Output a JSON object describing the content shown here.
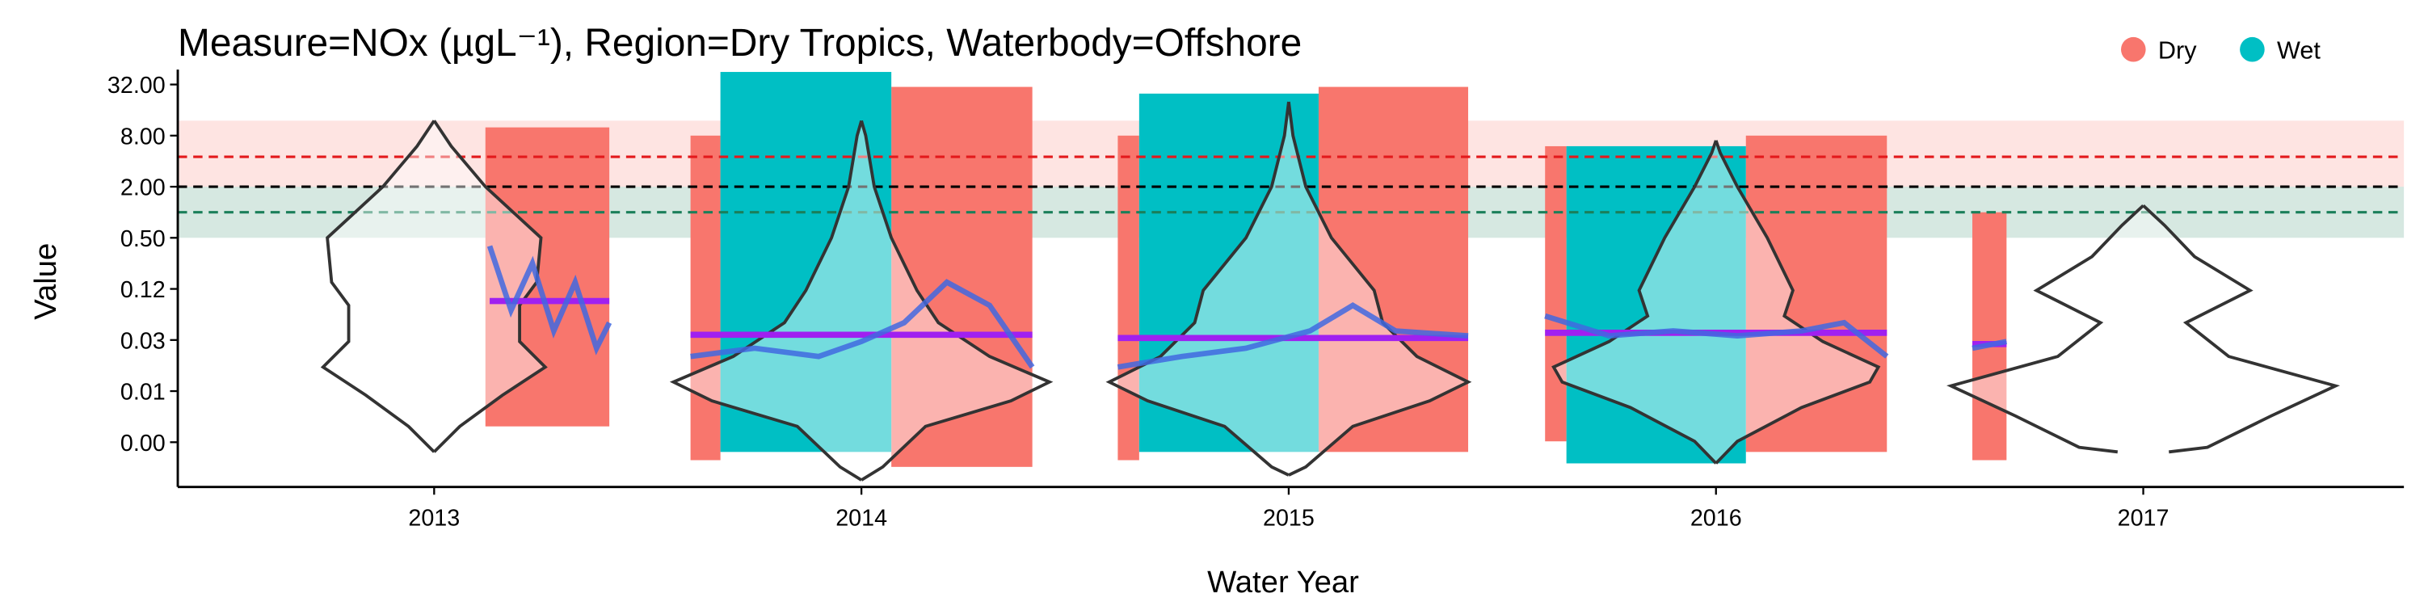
{
  "chart_data": {
    "type": "violin-scatter",
    "title": "Measure=NOx (µgL⁻¹), Region=Dry Tropics, Waterbody=Offshore",
    "x_label": "Water Year",
    "y_label": "Value",
    "xlim": [
      2012.4,
      2017.61
    ],
    "xticks": [
      2013,
      2014,
      2015,
      2016,
      2017
    ],
    "ylim": [
      0.00058,
      48
    ],
    "log_y": true,
    "yticks": [
      {
        "value": 0.001953,
        "label": "0.00"
      },
      {
        "value": 0.0078125,
        "label": "0.01"
      },
      {
        "value": 0.03125,
        "label": "0.03"
      },
      {
        "value": 0.125,
        "label": "0.12"
      },
      {
        "value": 0.5,
        "label": "0.50"
      },
      {
        "value": 2,
        "label": "2.00"
      },
      {
        "value": 8,
        "label": "8.00"
      },
      {
        "value": 32,
        "label": "32.00"
      }
    ],
    "legend": "top-right",
    "series": [
      {
        "name": "Dry",
        "color": "#F8766D",
        "segments": [
          {
            "x": [
              2013.12,
              2013.41
            ],
            "y": [
              0.003,
              10
            ]
          },
          {
            "x": [
              2013.6,
              2013.67
            ],
            "y": [
              0.0012,
              8
            ]
          },
          {
            "x": [
              2014.07,
              2014.4
            ],
            "y": [
              0.001,
              30
            ]
          },
          {
            "x": [
              2014.6,
              2014.65
            ],
            "y": [
              0.0012,
              8
            ]
          },
          {
            "x": [
              2015.07,
              2015.42
            ],
            "y": [
              0.0015,
              30
            ]
          },
          {
            "x": [
              2015.6,
              2015.65
            ],
            "y": [
              0.002,
              6
            ]
          },
          {
            "x": [
              2016.07,
              2016.4
            ],
            "y": [
              0.0015,
              8
            ]
          },
          {
            "x": [
              2016.6,
              2016.68
            ],
            "y": [
              0.0012,
              1
            ]
          }
        ]
      },
      {
        "name": "Wet",
        "color": "#00BFC4",
        "segments": [
          {
            "x": [
              2013.67,
              2014.07
            ],
            "y": [
              0.0015,
              45
            ]
          },
          {
            "x": [
              2014.65,
              2015.07
            ],
            "y": [
              0.0015,
              25
            ]
          },
          {
            "x": [
              2015.65,
              2016.07
            ],
            "y": [
              0.0011,
              6
            ]
          }
        ]
      }
    ],
    "violins": [
      {
        "x": 2013,
        "y": [
          0.0015,
          0.003,
          0.007,
          0.015,
          0.03,
          0.08,
          0.15,
          0.5,
          2,
          6,
          12
        ],
        "half_width": [
          0,
          0.06,
          0.16,
          0.26,
          0.2,
          0.2,
          0.24,
          0.25,
          0.12,
          0.04,
          0
        ]
      },
      {
        "x": 2014,
        "y": [
          0.0007,
          0.001,
          0.003,
          0.006,
          0.01,
          0.02,
          0.05,
          0.12,
          0.5,
          2,
          8,
          12
        ],
        "half_width": [
          0,
          0.05,
          0.15,
          0.35,
          0.44,
          0.3,
          0.18,
          0.13,
          0.07,
          0.03,
          0.01,
          0
        ]
      },
      {
        "x": 2015,
        "y": [
          0.0008,
          0.001,
          0.003,
          0.006,
          0.01,
          0.02,
          0.05,
          0.12,
          0.5,
          2,
          8,
          20
        ],
        "half_width": [
          0,
          0.04,
          0.15,
          0.33,
          0.42,
          0.3,
          0.22,
          0.2,
          0.1,
          0.04,
          0.01,
          0
        ]
      },
      {
        "x": 2016,
        "y": [
          0.0011,
          0.002,
          0.005,
          0.01,
          0.015,
          0.03,
          0.06,
          0.12,
          0.5,
          2,
          5,
          7
        ],
        "half_width": [
          0,
          0.05,
          0.2,
          0.36,
          0.38,
          0.25,
          0.16,
          0.18,
          0.12,
          0.05,
          0.01,
          0
        ]
      },
      {
        "x": 2017,
        "y": [
          0.0015,
          0.0017,
          0.004,
          0.009,
          0.02,
          0.05,
          0.12,
          0.3,
          0.7,
          1.2
        ],
        "half_width": [
          0.06,
          0.15,
          0.3,
          0.45,
          0.2,
          0.1,
          0.25,
          0.12,
          0.05,
          0
        ]
      }
    ],
    "trends": [
      {
        "color": "#4169E1",
        "x": [
          2013.13,
          2013.18,
          2013.23,
          2013.28,
          2013.33,
          2013.38,
          2013.41
        ],
        "y": [
          0.4,
          0.07,
          0.25,
          0.04,
          0.15,
          0.025,
          0.05
        ]
      },
      {
        "color": "#4169E1",
        "x": [
          2013.6,
          2013.75,
          2013.9,
          2014.0,
          2014.1,
          2014.2,
          2014.3,
          2014.4
        ],
        "y": [
          0.02,
          0.025,
          0.02,
          0.03,
          0.05,
          0.15,
          0.08,
          0.015
        ]
      },
      {
        "color": "#4169E1",
        "x": [
          2014.6,
          2014.75,
          2014.9,
          2015.05,
          2015.15,
          2015.25,
          2015.42
        ],
        "y": [
          0.015,
          0.02,
          0.025,
          0.04,
          0.08,
          0.04,
          0.035
        ]
      },
      {
        "color": "#4169E1",
        "x": [
          2015.6,
          2015.75,
          2015.9,
          2016.05,
          2016.2,
          2016.3,
          2016.4
        ],
        "y": [
          0.06,
          0.035,
          0.04,
          0.035,
          0.04,
          0.05,
          0.02
        ]
      },
      {
        "color": "#4169E1",
        "x": [
          2016.6,
          2016.68
        ],
        "y": [
          0.025,
          0.03
        ]
      }
    ],
    "means": [
      {
        "color": "#A020F0",
        "x": [
          2013.13,
          2013.41
        ],
        "y": 0.09
      },
      {
        "color": "#A020F0",
        "x": [
          2013.6,
          2014.4
        ],
        "y": 0.036
      },
      {
        "color": "#A020F0",
        "x": [
          2014.6,
          2015.42
        ],
        "y": 0.033
      },
      {
        "color": "#A020F0",
        "x": [
          2015.6,
          2016.4
        ],
        "y": 0.038
      },
      {
        "color": "#A020F0",
        "x": [
          2016.6,
          2016.68
        ],
        "y": 0.028
      }
    ],
    "bands": [
      {
        "y": [
          2,
          12
        ],
        "color": "#F8766D",
        "opacity": 0.2
      },
      {
        "y": [
          0.5,
          2
        ],
        "color": "#1B7F5A",
        "opacity": 0.18
      }
    ],
    "reference_lines": [
      {
        "y": 4.5,
        "color": "#E31A1C"
      },
      {
        "y": 2,
        "color": "#000000"
      },
      {
        "y": 1,
        "color": "#1B7F5A"
      }
    ]
  }
}
